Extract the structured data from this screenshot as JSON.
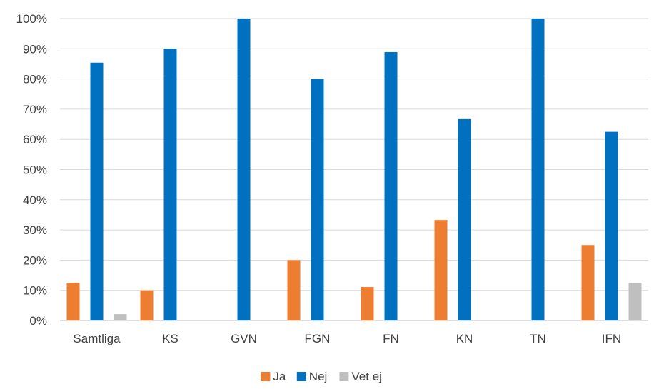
{
  "chart_data": {
    "type": "bar",
    "categories": [
      "Samtliga",
      "KS",
      "GVN",
      "FGN",
      "FN",
      "KN",
      "TN",
      "IFN"
    ],
    "series": [
      {
        "name": "Ja",
        "color": "#ED7D31",
        "values": [
          12.5,
          10,
          0,
          20,
          11.1,
          33.3,
          0,
          25
        ]
      },
      {
        "name": "Nej",
        "color": "#0070C0",
        "values": [
          85.4,
          90,
          100,
          80,
          88.9,
          66.7,
          100,
          62.5
        ]
      },
      {
        "name": "Vet ej",
        "color": "#BFBFBF",
        "values": [
          2.1,
          0,
          0,
          0,
          0,
          0,
          0,
          12.5
        ]
      }
    ],
    "ylim": [
      0,
      100
    ],
    "yticks": [
      "0%",
      "10%",
      "20%",
      "30%",
      "40%",
      "50%",
      "60%",
      "70%",
      "80%",
      "90%",
      "100%"
    ],
    "grid": true,
    "legend_position": "bottom-center"
  }
}
